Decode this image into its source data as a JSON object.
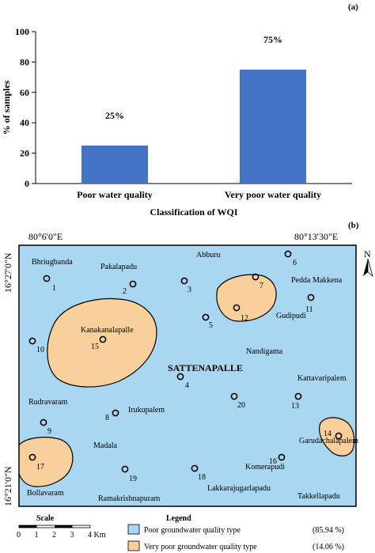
{
  "panel_a": {
    "label": "(a)",
    "chart_data": {
      "type": "bar",
      "categories": [
        "Poor water quality",
        "Very poor water quality"
      ],
      "values": [
        25,
        75
      ],
      "data_labels": [
        "25%",
        "75%"
      ],
      "xlabel": "Classification of WQI",
      "ylabel": "% of samples",
      "ylim": [
        0,
        100
      ],
      "yticks": [
        "0",
        "20",
        "40",
        "60",
        "80",
        "100"
      ],
      "bar_color": "#4472c4",
      "grid": false,
      "legend": "none"
    }
  },
  "panel_b": {
    "label": "(b)",
    "coords": {
      "top_left": "80°6'0\"E",
      "top_right": "80°13'30\"E",
      "left_top": "16°27'0\"N",
      "left_bottom": "16°21'0\"N"
    },
    "north_label": "N",
    "center_label": "SATTENAPALLE",
    "colors": {
      "poor": "#a9d6f0",
      "very_poor": "#f9cf9b"
    },
    "places": [
      {
        "name": "Bhriugbanda"
      },
      {
        "name": "Pakalapadu"
      },
      {
        "name": "Abburu"
      },
      {
        "name": "Pedda Makkena"
      },
      {
        "name": "Kanakanalapalle"
      },
      {
        "name": "Gudipudi"
      },
      {
        "name": "Nandigama"
      },
      {
        "name": "Kattavaripalem"
      },
      {
        "name": "Rudravaram"
      },
      {
        "name": "Irukupalem"
      },
      {
        "name": "Garudachalapalem"
      },
      {
        "name": "Madala"
      },
      {
        "name": "Komerapudi"
      },
      {
        "name": "Lakkarajugarlapadu"
      },
      {
        "name": "Bollavaram"
      },
      {
        "name": "Ramakrishnapuram"
      },
      {
        "name": "Takkellapadu"
      }
    ],
    "sites": [
      "1",
      "2",
      "3",
      "4",
      "5",
      "6",
      "7",
      "8",
      "9",
      "10",
      "11",
      "12",
      "13",
      "14",
      "15",
      "16",
      "17",
      "18",
      "19",
      "20"
    ],
    "scale": {
      "title": "Scale",
      "ticks": [
        "0",
        "1",
        "2",
        "3",
        "4 Km"
      ]
    },
    "legend": {
      "title": "Legend",
      "items": [
        {
          "label": "Poor groundwater quality type",
          "value": "(85.94 %)"
        },
        {
          "label": "Very poor groundwater quality type",
          "value": "(14.06 %)"
        }
      ]
    }
  }
}
